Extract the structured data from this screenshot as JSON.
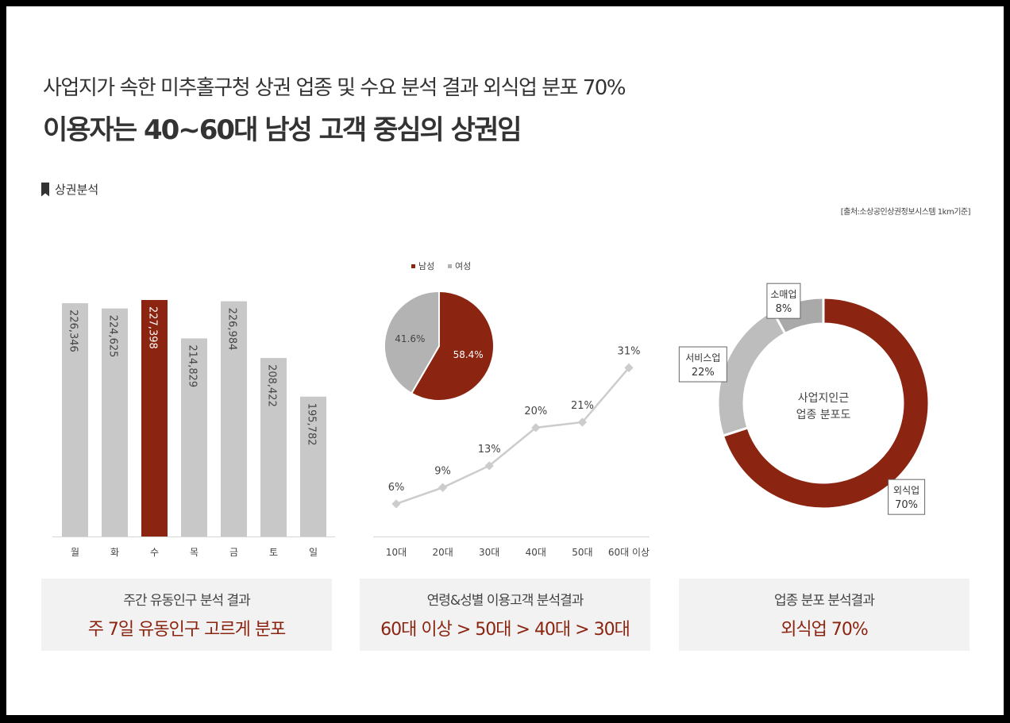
{
  "header": {
    "subtitle": "사업지가 속한 미추홀구청 상권 업종 및 수요 분석 결과 외식업 분포 70%",
    "headline": "이용자는 40~60대 남성 고객 중심의 상권임"
  },
  "section": {
    "label": "상권분석",
    "source": "[출처:소상공인상권정보시스템 1km기준]"
  },
  "colors": {
    "accent": "#8b2410",
    "gray": "#c8c8c8",
    "pie_gray": "#b3b3b3",
    "donut_gray": "#bdbdbd",
    "line": "#cccccc",
    "summary_value": "#8b2410"
  },
  "chart_data": [
    {
      "type": "bar",
      "categories": [
        "월",
        "화",
        "수",
        "목",
        "금",
        "토",
        "일"
      ],
      "values": [
        226346,
        224625,
        227398,
        214829,
        226984,
        208422,
        195782
      ],
      "value_labels": [
        "226,346",
        "224,625",
        "227,398",
        "214,829",
        "226,984",
        "208,422",
        "195,782"
      ],
      "highlight_index": 2,
      "ylim": [
        150000,
        230000
      ]
    },
    {
      "type": "pie",
      "legend": [
        "남성",
        "여성"
      ],
      "legend_position": "top",
      "slices": [
        {
          "name": "남성",
          "value": 58.4,
          "label": "58.4%"
        },
        {
          "name": "여성",
          "value": 41.6,
          "label": "41.6%"
        }
      ]
    },
    {
      "type": "line",
      "categories": [
        "10대",
        "20대",
        "30대",
        "40대",
        "50대",
        "60대 이상"
      ],
      "values": [
        6,
        9,
        13,
        20,
        21,
        31
      ],
      "value_labels": [
        "6%",
        "9%",
        "13%",
        "20%",
        "21%",
        "31%"
      ],
      "ylim": [
        0,
        35
      ]
    },
    {
      "type": "pie",
      "donut": true,
      "center_label": [
        "사업지인근",
        "업종 분포도"
      ],
      "slices": [
        {
          "name": "외식업",
          "value": 70,
          "label": "70%"
        },
        {
          "name": "서비스업",
          "value": 22,
          "label": "22%"
        },
        {
          "name": "소매업",
          "value": 8,
          "label": "8%"
        }
      ]
    }
  ],
  "summaries": [
    {
      "label": "주간 유동인구 분석 결과",
      "value": "주 7일 유동인구 고르게 분포"
    },
    {
      "label": "연령&성별 이용고객 분석결과",
      "value": "60대 이상 > 50대 > 40대 > 30대"
    },
    {
      "label": "업종 분포 분석결과",
      "value": "외식업 70%"
    }
  ]
}
